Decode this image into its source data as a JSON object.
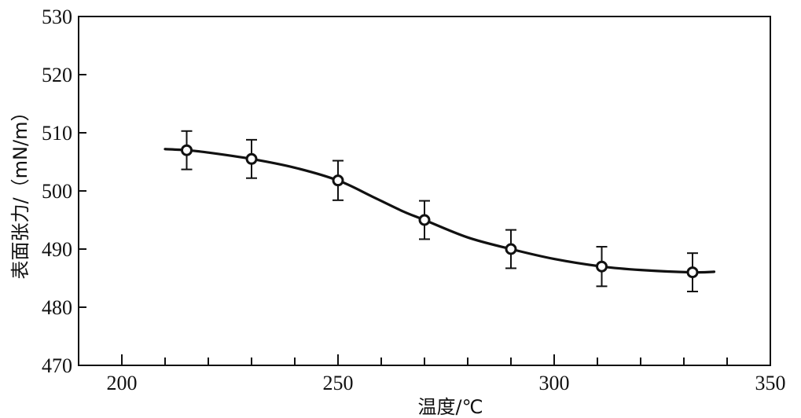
{
  "chart_data": {
    "type": "line",
    "xlabel": "温度/℃",
    "ylabel": "表面张力/（mN/m）",
    "xlim": [
      190,
      350
    ],
    "ylim": [
      470,
      530
    ],
    "xticks": [
      200,
      250,
      300,
      350
    ],
    "yticks": [
      470,
      480,
      490,
      500,
      510,
      520,
      530
    ],
    "x_minor_step": 10,
    "series": [
      {
        "values": [
          {
            "x": 215,
            "y": 507.0,
            "err": 3.3
          },
          {
            "x": 230,
            "y": 505.5,
            "err": 3.3
          },
          {
            "x": 250,
            "y": 501.8,
            "err": 3.4
          },
          {
            "x": 270,
            "y": 495.0,
            "err": 3.3
          },
          {
            "x": 290,
            "y": 490.0,
            "err": 3.3
          },
          {
            "x": 311,
            "y": 487.0,
            "err": 3.4
          },
          {
            "x": 332,
            "y": 486.0,
            "err": 3.3
          }
        ],
        "fit_curve": [
          [
            210,
            507.2
          ],
          [
            215,
            507.0
          ],
          [
            220,
            506.6
          ],
          [
            230,
            505.5
          ],
          [
            240,
            504.0
          ],
          [
            250,
            501.8
          ],
          [
            258,
            499.0
          ],
          [
            265,
            496.5
          ],
          [
            270,
            495.0
          ],
          [
            280,
            492.0
          ],
          [
            290,
            490.0
          ],
          [
            300,
            488.3
          ],
          [
            311,
            487.0
          ],
          [
            320,
            486.4
          ],
          [
            332,
            486.0
          ],
          [
            337,
            486.1
          ]
        ]
      }
    ],
    "grid": false,
    "marker": "open-circle",
    "error_bars": true
  }
}
